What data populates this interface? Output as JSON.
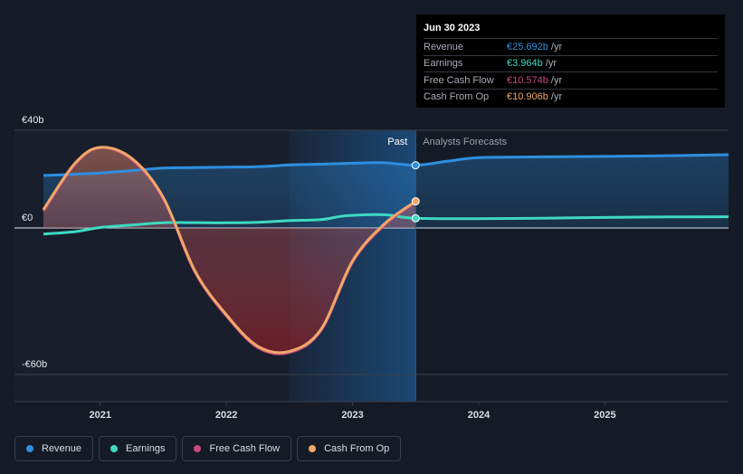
{
  "chart_data": {
    "type": "area",
    "y_unit": "€",
    "ylim": [
      -60,
      40
    ],
    "yticks": [
      {
        "value": 40,
        "label": "€40b"
      },
      {
        "value": 0,
        "label": "€0"
      },
      {
        "value": -60,
        "label": "-€60b"
      }
    ],
    "xlim": [
      2020.55,
      2025.98
    ],
    "xticks": [
      {
        "value": 2021,
        "label": "2021"
      },
      {
        "value": 2022,
        "label": "2022"
      },
      {
        "value": 2023,
        "label": "2023"
      },
      {
        "value": 2024,
        "label": "2024"
      },
      {
        "value": 2025,
        "label": "2025"
      }
    ],
    "past_label": "Past",
    "forecast_label": "Analysts Forecasts",
    "divider_x": 2023.5,
    "highlight_start_x": 2022.5,
    "series": [
      {
        "name": "Revenue",
        "color": "#2e8fe0",
        "x": [
          2020.55,
          2020.8,
          2021.0,
          2021.25,
          2021.5,
          2021.75,
          2022.0,
          2022.25,
          2022.4,
          2022.5,
          2022.75,
          2023.0,
          2023.25,
          2023.5,
          2023.75,
          2024.0,
          2024.5,
          2025.0,
          2025.5,
          2025.98
        ],
        "y": [
          21.5,
          22.0,
          22.5,
          23.5,
          24.5,
          24.7,
          24.9,
          25.1,
          25.5,
          25.8,
          26.1,
          26.5,
          26.7,
          25.692,
          27.3,
          28.8,
          29.1,
          29.3,
          29.6,
          30.0
        ]
      },
      {
        "name": "Earnings",
        "color": "#3fd9c2",
        "x": [
          2020.55,
          2020.8,
          2021.0,
          2021.25,
          2021.5,
          2021.75,
          2022.0,
          2022.25,
          2022.5,
          2022.75,
          2022.95,
          2023.25,
          2023.5,
          2024.0,
          2024.5,
          2025.0,
          2025.5,
          2025.98
        ],
        "y": [
          -2.5,
          -1.5,
          0.2,
          1.2,
          2.1,
          2.2,
          2.1,
          2.3,
          3.0,
          3.4,
          5.0,
          5.4,
          3.964,
          3.8,
          4.0,
          4.3,
          4.5,
          4.6
        ]
      },
      {
        "name": "Free Cash Flow",
        "color": "#c8477d",
        "x": [
          2020.55,
          2020.8,
          2021.0,
          2021.25,
          2021.5,
          2021.75,
          2022.0,
          2022.25,
          2022.5,
          2022.75,
          2023.0,
          2023.25,
          2023.5
        ],
        "y": [
          7.0,
          26.0,
          32.8,
          28.0,
          12.0,
          -18.0,
          -36.0,
          -49.0,
          -51.0,
          -42.0,
          -14.0,
          1.0,
          10.574
        ]
      },
      {
        "name": "Cash From Op",
        "color": "#f0a868",
        "x": [
          2020.55,
          2020.8,
          2021.0,
          2021.25,
          2021.5,
          2021.75,
          2022.0,
          2022.25,
          2022.5,
          2022.75,
          2023.0,
          2023.25,
          2023.5
        ],
        "y": [
          7.5,
          26.5,
          33.0,
          28.5,
          12.5,
          -17.5,
          -35.5,
          -48.5,
          -50.5,
          -41.5,
          -13.5,
          1.5,
          10.906
        ]
      }
    ]
  },
  "tooltip": {
    "date": "Jun 30 2023",
    "rows": [
      {
        "name": "Revenue",
        "value": "€25.692b",
        "unit": "/yr",
        "color": "#2e8fe0"
      },
      {
        "name": "Earnings",
        "value": "€3.964b",
        "unit": "/yr",
        "color": "#3fd9c2"
      },
      {
        "name": "Free Cash Flow",
        "value": "€10.574b",
        "unit": "/yr",
        "color": "#c8477d"
      },
      {
        "name": "Cash From Op",
        "value": "€10.906b",
        "unit": "/yr",
        "color": "#f0a868"
      }
    ]
  },
  "legend": [
    {
      "label": "Revenue",
      "color": "#2e8fe0"
    },
    {
      "label": "Earnings",
      "color": "#3fd9c2"
    },
    {
      "label": "Free Cash Flow",
      "color": "#c8477d"
    },
    {
      "label": "Cash From Op",
      "color": "#f0a868"
    }
  ]
}
